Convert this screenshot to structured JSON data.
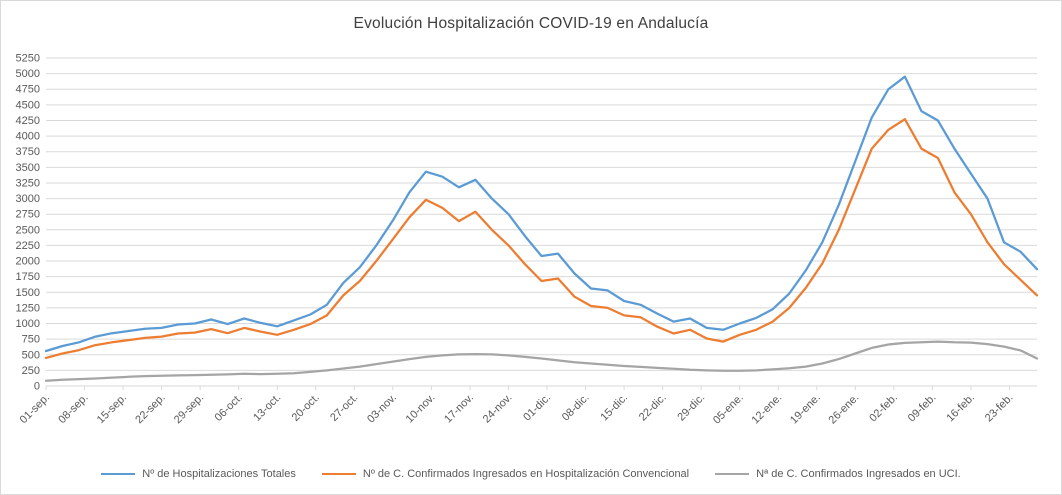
{
  "chart_data": {
    "type": "line",
    "title": "Evolución Hospitalización COVID-19 en Andalucía",
    "xlabel": "",
    "ylabel": "",
    "ylim": [
      0,
      5250
    ],
    "y_tick_step": 250,
    "grid": true,
    "legend_position": "bottom",
    "x_tick_labels": [
      "01-sep.",
      "08-sep.",
      "15-sep.",
      "22-sep.",
      "29-sep.",
      "06-oct.",
      "13-oct.",
      "20-oct.",
      "27-oct.",
      "03-nov.",
      "10-nov.",
      "17-nov.",
      "24-nov.",
      "01-dic.",
      "08-dic.",
      "15-dic.",
      "22-dic.",
      "29-dic.",
      "05-ene.",
      "12-ene.",
      "19-ene.",
      "26-ene.",
      "02-feb.",
      "09-feb.",
      "16-feb.",
      "23-feb."
    ],
    "x_tick_interval_days": 7,
    "sample_interval_days": 3,
    "total_days": 180,
    "colors": {
      "gridline": "#d9d9d9",
      "axis_labels": "#595959",
      "title": "#404040"
    },
    "series": [
      {
        "name": "Nº de Hospitalizaciones Totales",
        "color": "#5B9BD5",
        "values": [
          560,
          640,
          700,
          790,
          845,
          880,
          915,
          930,
          985,
          1000,
          1065,
          990,
          1080,
          1010,
          955,
          1050,
          1145,
          1300,
          1650,
          1900,
          2250,
          2650,
          3100,
          3430,
          3350,
          3180,
          3300,
          3000,
          2750,
          2400,
          2080,
          2120,
          1800,
          1560,
          1530,
          1360,
          1300,
          1160,
          1030,
          1080,
          930,
          900,
          1000,
          1090,
          1230,
          1480,
          1850,
          2300,
          2900,
          3600,
          4300,
          4750,
          4950,
          4400,
          4250,
          3800,
          3400,
          3000,
          2300,
          2150,
          1870
        ]
      },
      {
        "name": "Nº de C. Confirmados Ingresados en Hospitalización Convencional",
        "color": "#ED7D31",
        "values": [
          450,
          520,
          575,
          655,
          700,
          735,
          770,
          790,
          840,
          855,
          910,
          845,
          930,
          870,
          820,
          900,
          990,
          1130,
          1450,
          1680,
          2000,
          2350,
          2700,
          2980,
          2850,
          2640,
          2790,
          2500,
          2250,
          1950,
          1680,
          1720,
          1430,
          1280,
          1250,
          1130,
          1100,
          950,
          840,
          900,
          760,
          710,
          820,
          900,
          1030,
          1250,
          1570,
          1960,
          2500,
          3150,
          3800,
          4100,
          4270,
          3800,
          3650,
          3100,
          2750,
          2300,
          1950,
          1700,
          1450
        ]
      },
      {
        "name": "Nª de C. Confirmados Ingresados en UCI.",
        "color": "#A5A5A5",
        "values": [
          85,
          100,
          110,
          120,
          135,
          148,
          158,
          165,
          170,
          175,
          180,
          185,
          195,
          190,
          195,
          205,
          225,
          250,
          280,
          310,
          350,
          390,
          430,
          465,
          490,
          505,
          510,
          505,
          490,
          465,
          440,
          410,
          380,
          360,
          340,
          320,
          305,
          290,
          275,
          260,
          250,
          245,
          245,
          250,
          265,
          285,
          310,
          360,
          430,
          520,
          610,
          665,
          690,
          700,
          710,
          700,
          695,
          670,
          630,
          570,
          440
        ]
      }
    ]
  }
}
